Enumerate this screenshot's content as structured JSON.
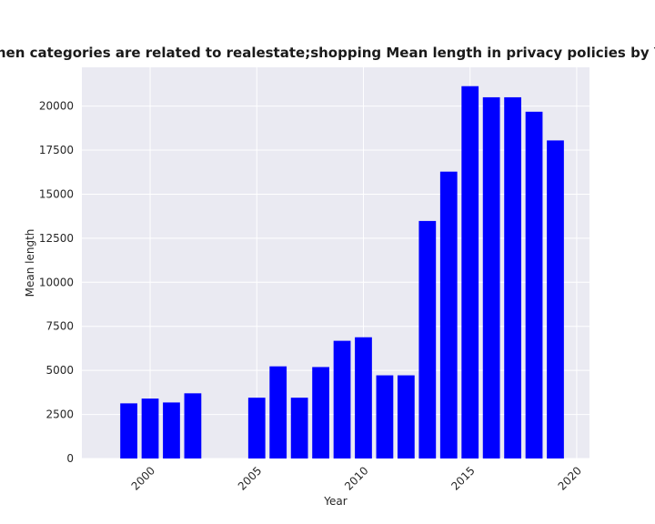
{
  "chart_data": {
    "type": "bar",
    "title": "when categories are related to realestate;shopping Mean length in privacy policies by Year",
    "xlabel": "Year",
    "ylabel": "Mean length",
    "x": [
      1999,
      2000,
      2001,
      2002,
      2005,
      2006,
      2007,
      2008,
      2009,
      2010,
      2011,
      2012,
      2013,
      2014,
      2015,
      2016,
      2017,
      2018,
      2019
    ],
    "values": [
      3130,
      3400,
      3180,
      3700,
      3450,
      5230,
      3450,
      5190,
      6680,
      6880,
      4720,
      4720,
      13480,
      16280,
      21130,
      20500,
      20500,
      19680,
      18050
    ],
    "xlim": [
      1996.8,
      2020.6
    ],
    "ylim": [
      0,
      22200
    ],
    "xticks": [
      2000,
      2005,
      2010,
      2015,
      2020
    ],
    "yticks": [
      0,
      2500,
      5000,
      7500,
      10000,
      12500,
      15000,
      17500,
      20000
    ],
    "bar_color": "#0000ff",
    "plot_background": "#eaeaf2",
    "grid": true
  }
}
